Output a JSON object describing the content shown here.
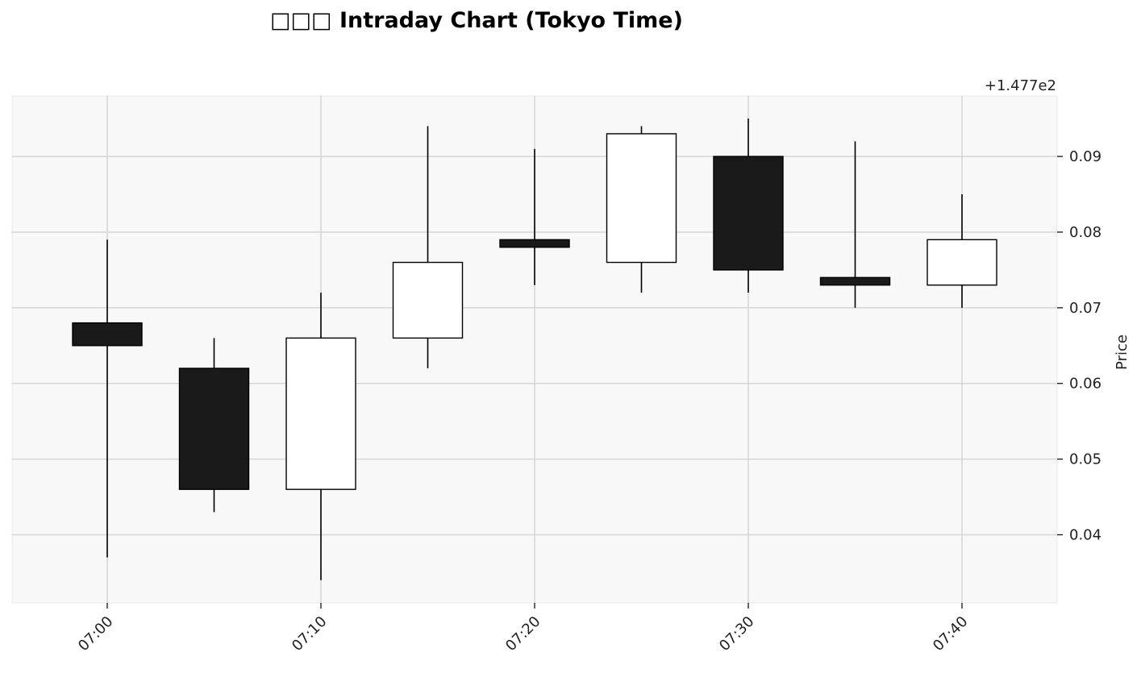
{
  "chart_data": {
    "type": "candlestick",
    "title": "□□□ Intraday Chart (Tokyo Time)",
    "ylabel": "Price",
    "xlabel": "",
    "y_offset_label": "+1.477e2",
    "y_offset": 147.7,
    "ylim": [
      0.031,
      0.098
    ],
    "yticks": [
      0.04,
      0.05,
      0.06,
      0.07,
      0.08,
      0.09
    ],
    "ytick_labels": [
      "0.04",
      "0.05",
      "0.06",
      "0.07",
      "0.08",
      "0.09"
    ],
    "y_axis_side": "right",
    "xticks": [
      "07:00",
      "07:10",
      "07:20",
      "07:30",
      "07:40"
    ],
    "grid": true,
    "candles": [
      {
        "time": "07:00",
        "open": 0.068,
        "high": 0.079,
        "low": 0.037,
        "close": 0.065
      },
      {
        "time": "07:05",
        "open": 0.062,
        "high": 0.066,
        "low": 0.043,
        "close": 0.046
      },
      {
        "time": "07:10",
        "open": 0.046,
        "high": 0.072,
        "low": 0.034,
        "close": 0.066
      },
      {
        "time": "07:15",
        "open": 0.066,
        "high": 0.094,
        "low": 0.062,
        "close": 0.076
      },
      {
        "time": "07:20",
        "open": 0.079,
        "high": 0.091,
        "low": 0.073,
        "close": 0.078
      },
      {
        "time": "07:25",
        "open": 0.076,
        "high": 0.094,
        "low": 0.072,
        "close": 0.093
      },
      {
        "time": "07:30",
        "open": 0.09,
        "high": 0.095,
        "low": 0.072,
        "close": 0.075
      },
      {
        "time": "07:35",
        "open": 0.074,
        "high": 0.092,
        "low": 0.07,
        "close": 0.073
      },
      {
        "time": "07:40",
        "open": 0.073,
        "high": 0.085,
        "low": 0.07,
        "close": 0.079
      }
    ],
    "colors": {
      "up_fill": "#ffffff",
      "down_fill": "#1a1a1a",
      "edge": "#000000",
      "wick": "#000000",
      "plot_bg": "#f8f8f8",
      "grid": "#d6d6d6"
    }
  }
}
